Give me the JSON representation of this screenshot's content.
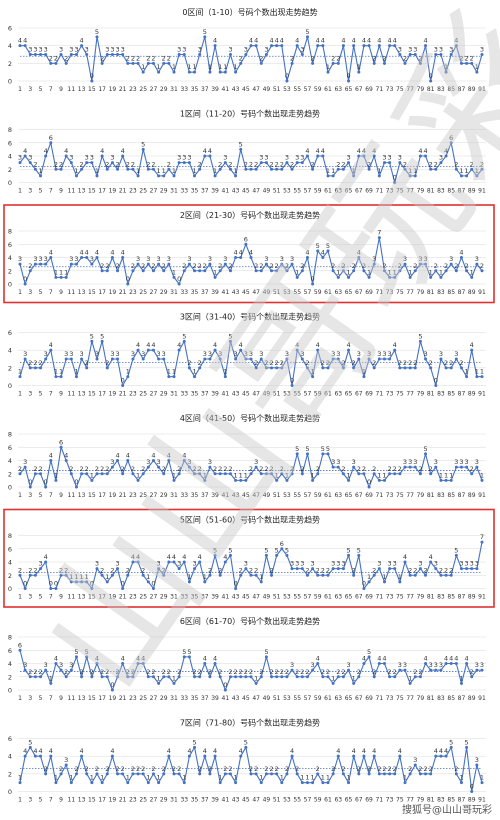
{
  "watermark": {
    "text": "山山哥玩彩"
  },
  "footer": {
    "text": "搜狐号@山山哥玩彩"
  },
  "colors": {
    "line": "#4472c4",
    "avg": "#4472c4",
    "highlight": "#e03030",
    "grid": "#d9d9d9",
    "label": "#333333",
    "watermark": "#c8c8c8"
  },
  "x_axis": {
    "ticks": [
      1,
      3,
      5,
      7,
      9,
      11,
      13,
      15,
      17,
      19,
      21,
      23,
      25,
      27,
      29,
      31,
      33,
      35,
      37,
      39,
      41,
      43,
      45,
      47,
      49,
      51,
      53,
      55,
      57,
      59,
      61,
      63,
      65,
      67,
      69,
      71,
      73,
      75,
      77,
      79,
      81,
      83,
      85,
      87,
      89,
      91
    ]
  },
  "chart_data": [
    {
      "type": "line",
      "title": "0区间（1-10）号码个数出现走势趋势",
      "ylim": [
        0,
        6
      ],
      "yticks": [
        0,
        2,
        4,
        6
      ],
      "highlighted": false,
      "avg": 2.8,
      "x": [
        1,
        2,
        3,
        4,
        5,
        6,
        7,
        8,
        9,
        10,
        11,
        12,
        13,
        14,
        15,
        16,
        17,
        18,
        19,
        20,
        21,
        22,
        23,
        24,
        25,
        26,
        27,
        28,
        29,
        30,
        31,
        32,
        33,
        34,
        35,
        36,
        37,
        38,
        39,
        40,
        41,
        42,
        43,
        44,
        45,
        46,
        47,
        48,
        49,
        50,
        51,
        52,
        53,
        54,
        55,
        56,
        57,
        58,
        59,
        60,
        61,
        62,
        63,
        64,
        65,
        66,
        67,
        68,
        69,
        70,
        71,
        72,
        73,
        74,
        75,
        76,
        77,
        78,
        79,
        80,
        81,
        82,
        83,
        84,
        85,
        86,
        87,
        88,
        89,
        90,
        91
      ],
      "values": [
        4,
        4,
        3,
        3,
        3,
        3,
        2,
        2,
        3,
        2,
        3,
        3,
        4,
        3,
        0,
        5,
        2,
        3,
        3,
        3,
        3,
        2,
        2,
        2,
        1,
        2,
        2,
        1,
        2,
        2,
        1,
        3,
        3,
        1,
        1,
        3,
        5,
        1,
        4,
        1,
        1,
        3,
        1,
        2,
        3,
        4,
        4,
        2,
        3,
        4,
        4,
        4,
        0,
        2,
        4,
        3,
        5,
        2,
        4,
        4,
        1,
        2,
        2,
        4,
        0,
        4,
        1,
        4,
        4,
        2,
        4,
        2,
        4,
        4,
        3,
        2,
        3,
        3,
        2,
        4,
        0,
        3,
        3,
        1,
        3,
        4,
        2,
        2,
        2,
        1,
        3
      ]
    },
    {
      "type": "line",
      "title": "1区间（11-20）号码个数出现走势趋势",
      "ylim": [
        0,
        8
      ],
      "yticks": [
        0,
        2,
        4,
        6,
        8
      ],
      "highlighted": false,
      "avg": 2.4,
      "x": [
        1,
        2,
        3,
        4,
        5,
        6,
        7,
        8,
        9,
        10,
        11,
        12,
        13,
        14,
        15,
        16,
        17,
        18,
        19,
        20,
        21,
        22,
        23,
        24,
        25,
        26,
        27,
        28,
        29,
        30,
        31,
        32,
        33,
        34,
        35,
        36,
        37,
        38,
        39,
        40,
        41,
        42,
        43,
        44,
        45,
        46,
        47,
        48,
        49,
        50,
        51,
        52,
        53,
        54,
        55,
        56,
        57,
        58,
        59,
        60,
        61,
        62,
        63,
        64,
        65,
        66,
        67,
        68,
        69,
        70,
        71,
        72,
        73,
        74,
        75,
        76,
        77,
        78,
        79,
        80,
        81,
        82,
        83,
        84,
        85,
        86,
        87,
        88,
        89,
        90,
        91
      ],
      "values": [
        3,
        4,
        3,
        2,
        1,
        4,
        6,
        2,
        2,
        4,
        3,
        1,
        2,
        3,
        3,
        1,
        4,
        2,
        3,
        2,
        4,
        2,
        2,
        1,
        5,
        2,
        2,
        1,
        1,
        2,
        1,
        3,
        3,
        3,
        1,
        2,
        4,
        4,
        1,
        2,
        3,
        2,
        1,
        5,
        2,
        2,
        2,
        3,
        3,
        2,
        2,
        2,
        3,
        2,
        3,
        3,
        4,
        2,
        4,
        4,
        1,
        1,
        2,
        2,
        3,
        1,
        4,
        4,
        2,
        4,
        1,
        3,
        3,
        0,
        3,
        2,
        1,
        1,
        4,
        4,
        2,
        2,
        3,
        4,
        6,
        2,
        1,
        1,
        2,
        1,
        2
      ]
    },
    {
      "type": "line",
      "title": "2区间（21-30）号码个数出现走势趋势",
      "ylim": [
        0,
        8
      ],
      "yticks": [
        0,
        2,
        4,
        6,
        8
      ],
      "highlighted": true,
      "avg": 2.6,
      "x": [
        1,
        2,
        3,
        4,
        5,
        6,
        7,
        8,
        9,
        10,
        11,
        12,
        13,
        14,
        15,
        16,
        17,
        18,
        19,
        20,
        21,
        22,
        23,
        24,
        25,
        26,
        27,
        28,
        29,
        30,
        31,
        32,
        33,
        34,
        35,
        36,
        37,
        38,
        39,
        40,
        41,
        42,
        43,
        44,
        45,
        46,
        47,
        48,
        49,
        50,
        51,
        52,
        53,
        54,
        55,
        56,
        57,
        58,
        59,
        60,
        61,
        62,
        63,
        64,
        65,
        66,
        67,
        68,
        69,
        70,
        71,
        72,
        73,
        74,
        75,
        76,
        77,
        78,
        79,
        80,
        81,
        82,
        83,
        84,
        85,
        86,
        87,
        88,
        89,
        90,
        91
      ],
      "values": [
        3,
        0,
        2,
        3,
        3,
        3,
        4,
        1,
        1,
        1,
        3,
        3,
        4,
        4,
        3,
        4,
        2,
        2,
        4,
        2,
        4,
        0,
        2,
        3,
        2,
        3,
        2,
        3,
        2,
        3,
        1,
        0,
        2,
        3,
        2,
        2,
        2,
        3,
        1,
        2,
        3,
        2,
        4,
        4,
        6,
        4,
        2,
        2,
        3,
        2,
        2,
        3,
        2,
        3,
        1,
        2,
        4,
        0,
        5,
        4,
        5,
        2,
        1,
        2,
        1,
        2,
        4,
        2,
        1,
        3,
        7,
        2,
        1,
        1,
        2,
        3,
        1,
        2,
        3,
        3,
        1,
        2,
        1,
        2,
        3,
        2,
        4,
        2,
        1,
        3,
        2
      ]
    },
    {
      "type": "line",
      "title": "3区间（31-40）号码个数出现走势趋势",
      "ylim": [
        0,
        6
      ],
      "yticks": [
        0,
        2,
        4,
        6
      ],
      "highlighted": false,
      "avg": 2.6,
      "x": [
        1,
        2,
        3,
        4,
        5,
        6,
        7,
        8,
        9,
        10,
        11,
        12,
        13,
        14,
        15,
        16,
        17,
        18,
        19,
        20,
        21,
        22,
        23,
        24,
        25,
        26,
        27,
        28,
        29,
        30,
        31,
        32,
        33,
        34,
        35,
        36,
        37,
        38,
        39,
        40,
        41,
        42,
        43,
        44,
        45,
        46,
        47,
        48,
        49,
        50,
        51,
        52,
        53,
        54,
        55,
        56,
        57,
        58,
        59,
        60,
        61,
        62,
        63,
        64,
        65,
        66,
        67,
        68,
        69,
        70,
        71,
        72,
        73,
        74,
        75,
        76,
        77,
        78,
        79,
        80,
        81,
        82,
        83,
        84,
        85,
        86,
        87,
        88,
        89,
        90,
        91
      ],
      "values": [
        1,
        3,
        2,
        2,
        2,
        3,
        4,
        1,
        1,
        3,
        3,
        1,
        3,
        2,
        5,
        3,
        5,
        2,
        3,
        3,
        0,
        1,
        3,
        4,
        3,
        4,
        4,
        3,
        3,
        1,
        1,
        4,
        5,
        2,
        1,
        2,
        3,
        3,
        4,
        3,
        1,
        5,
        3,
        4,
        3,
        3,
        2,
        3,
        2,
        2,
        2,
        2,
        3,
        0,
        4,
        3,
        2,
        1,
        4,
        2,
        2,
        3,
        3,
        2,
        4,
        2,
        3,
        1,
        3,
        2,
        3,
        3,
        3,
        4,
        2,
        2,
        2,
        2,
        5,
        3,
        2,
        0,
        3,
        2,
        2,
        3,
        2,
        1,
        4,
        1,
        1
      ]
    },
    {
      "type": "line",
      "title": "4区间（41-50）号码个数出现走势趋势",
      "ylim": [
        0,
        8
      ],
      "yticks": [
        0,
        2,
        4,
        6,
        8
      ],
      "highlighted": false,
      "avg": 2.5,
      "x": [
        1,
        2,
        3,
        4,
        5,
        6,
        7,
        8,
        9,
        10,
        11,
        12,
        13,
        14,
        15,
        16,
        17,
        18,
        19,
        20,
        21,
        22,
        23,
        24,
        25,
        26,
        27,
        28,
        29,
        30,
        31,
        32,
        33,
        34,
        35,
        36,
        37,
        38,
        39,
        40,
        41,
        42,
        43,
        44,
        45,
        46,
        47,
        48,
        49,
        50,
        51,
        52,
        53,
        54,
        55,
        56,
        57,
        58,
        59,
        60,
        61,
        62,
        63,
        64,
        65,
        66,
        67,
        68,
        69,
        70,
        71,
        72,
        73,
        74,
        75,
        76,
        77,
        78,
        79,
        80,
        81,
        82,
        83,
        84,
        85,
        86,
        87,
        88,
        89,
        90,
        91
      ],
      "values": [
        2,
        3,
        0,
        2,
        2,
        0,
        4,
        1,
        6,
        4,
        2,
        0,
        2,
        2,
        1,
        2,
        2,
        2,
        3,
        4,
        2,
        4,
        2,
        1,
        2,
        3,
        4,
        3,
        2,
        4,
        1,
        2,
        4,
        3,
        2,
        2,
        1,
        3,
        2,
        2,
        2,
        2,
        1,
        1,
        1,
        2,
        3,
        2,
        2,
        2,
        1,
        2,
        1,
        2,
        5,
        2,
        5,
        1,
        2,
        5,
        5,
        3,
        3,
        2,
        1,
        3,
        2,
        2,
        0,
        2,
        1,
        1,
        2,
        2,
        2,
        3,
        3,
        3,
        2,
        5,
        2,
        3,
        1,
        1,
        1,
        3,
        3,
        3,
        2,
        3,
        1
      ]
    },
    {
      "type": "line",
      "title": "5区间（51-60）号码个数出现走势趋势",
      "ylim": [
        0,
        8
      ],
      "yticks": [
        0,
        2,
        4,
        6,
        8
      ],
      "highlighted": true,
      "avg": 2.4,
      "x": [
        1,
        2,
        3,
        4,
        5,
        6,
        7,
        8,
        9,
        10,
        11,
        12,
        13,
        14,
        15,
        16,
        17,
        18,
        19,
        20,
        21,
        22,
        23,
        24,
        25,
        26,
        27,
        28,
        29,
        30,
        31,
        32,
        33,
        34,
        35,
        36,
        37,
        38,
        39,
        40,
        41,
        42,
        43,
        44,
        45,
        46,
        47,
        48,
        49,
        50,
        51,
        52,
        53,
        54,
        55,
        56,
        57,
        58,
        59,
        60,
        61,
        62,
        63,
        64,
        65,
        66,
        67,
        68,
        69,
        70,
        71,
        72,
        73,
        74,
        75,
        76,
        77,
        78,
        79,
        80,
        81,
        82,
        83,
        84,
        85,
        86,
        87,
        88,
        89,
        90,
        91
      ],
      "values": [
        2,
        0,
        2,
        2,
        3,
        4,
        0,
        0,
        2,
        2,
        1,
        1,
        1,
        1,
        0,
        3,
        2,
        1,
        2,
        3,
        0,
        2,
        4,
        4,
        2,
        1,
        0,
        3,
        2,
        4,
        4,
        3,
        4,
        1,
        3,
        4,
        1,
        2,
        5,
        2,
        4,
        5,
        0,
        2,
        3,
        2,
        2,
        1,
        5,
        2,
        5,
        6,
        5,
        3,
        3,
        3,
        2,
        3,
        2,
        2,
        2,
        3,
        3,
        3,
        5,
        2,
        5,
        0,
        1,
        2,
        3,
        1,
        3,
        3,
        1,
        4,
        2,
        2,
        3,
        2,
        4,
        3,
        2,
        2,
        2,
        5,
        3,
        3,
        3,
        3,
        7
      ]
    },
    {
      "type": "line",
      "title": "6区间（61-70）号码个数出现走势趋势",
      "ylim": [
        0,
        8
      ],
      "yticks": [
        0,
        2,
        4,
        6,
        8
      ],
      "highlighted": false,
      "avg": 2.8,
      "x": [
        1,
        2,
        3,
        4,
        5,
        6,
        7,
        8,
        9,
        10,
        11,
        12,
        13,
        14,
        15,
        16,
        17,
        18,
        19,
        20,
        21,
        22,
        23,
        24,
        25,
        26,
        27,
        28,
        29,
        30,
        31,
        32,
        33,
        34,
        35,
        36,
        37,
        38,
        39,
        40,
        41,
        42,
        43,
        44,
        45,
        46,
        47,
        48,
        49,
        50,
        51,
        52,
        53,
        54,
        55,
        56,
        57,
        58,
        59,
        60,
        61,
        62,
        63,
        64,
        65,
        66,
        67,
        68,
        69,
        70,
        71,
        72,
        73,
        74,
        75,
        76,
        77,
        78,
        79,
        80,
        81,
        82,
        83,
        84,
        85,
        86,
        87,
        88,
        89,
        90,
        91
      ],
      "values": [
        6,
        3,
        2,
        2,
        2,
        3,
        1,
        4,
        3,
        2,
        3,
        5,
        2,
        5,
        2,
        4,
        2,
        2,
        0,
        2,
        4,
        2,
        2,
        4,
        4,
        2,
        2,
        1,
        2,
        2,
        1,
        2,
        5,
        5,
        2,
        2,
        4,
        2,
        4,
        2,
        0,
        2,
        2,
        2,
        2,
        2,
        1,
        2,
        5,
        2,
        2,
        2,
        2,
        3,
        2,
        2,
        2,
        3,
        4,
        2,
        2,
        1,
        2,
        2,
        3,
        1,
        2,
        4,
        5,
        2,
        4,
        4,
        2,
        2,
        3,
        3,
        1,
        2,
        2,
        4,
        3,
        3,
        3,
        4,
        4,
        4,
        1,
        4,
        2,
        3,
        3
      ]
    },
    {
      "type": "line",
      "title": "7区间（71-80）号码个数出现走势趋势",
      "ylim": [
        0,
        6
      ],
      "yticks": [
        0,
        2,
        4,
        6
      ],
      "highlighted": false,
      "avg": 2.6,
      "x": [
        1,
        2,
        3,
        4,
        5,
        6,
        7,
        8,
        9,
        10,
        11,
        12,
        13,
        14,
        15,
        16,
        17,
        18,
        19,
        20,
        21,
        22,
        23,
        24,
        25,
        26,
        27,
        28,
        29,
        30,
        31,
        32,
        33,
        34,
        35,
        36,
        37,
        38,
        39,
        40,
        41,
        42,
        43,
        44,
        45,
        46,
        47,
        48,
        49,
        50,
        51,
        52,
        53,
        54,
        55,
        56,
        57,
        58,
        59,
        60,
        61,
        62,
        63,
        64,
        65,
        66,
        67,
        68,
        69,
        70,
        71,
        72,
        73,
        74,
        75,
        76,
        77,
        78,
        79,
        80,
        81,
        82,
        83,
        84,
        85,
        86,
        87,
        88,
        89,
        90,
        91
      ],
      "values": [
        1,
        4,
        5,
        4,
        4,
        2,
        4,
        1,
        2,
        3,
        1,
        2,
        4,
        2,
        1,
        2,
        1,
        2,
        4,
        2,
        2,
        1,
        2,
        2,
        2,
        1,
        2,
        1,
        2,
        4,
        2,
        2,
        1,
        4,
        5,
        2,
        4,
        2,
        4,
        1,
        2,
        2,
        1,
        4,
        5,
        2,
        2,
        1,
        2,
        2,
        2,
        1,
        2,
        4,
        2,
        1,
        1,
        1,
        2,
        1,
        1,
        2,
        4,
        2,
        1,
        4,
        2,
        4,
        2,
        4,
        2,
        2,
        2,
        2,
        4,
        1,
        2,
        3,
        2,
        2,
        2,
        4,
        4,
        4,
        5,
        2,
        1,
        5,
        0,
        3,
        1
      ]
    }
  ]
}
